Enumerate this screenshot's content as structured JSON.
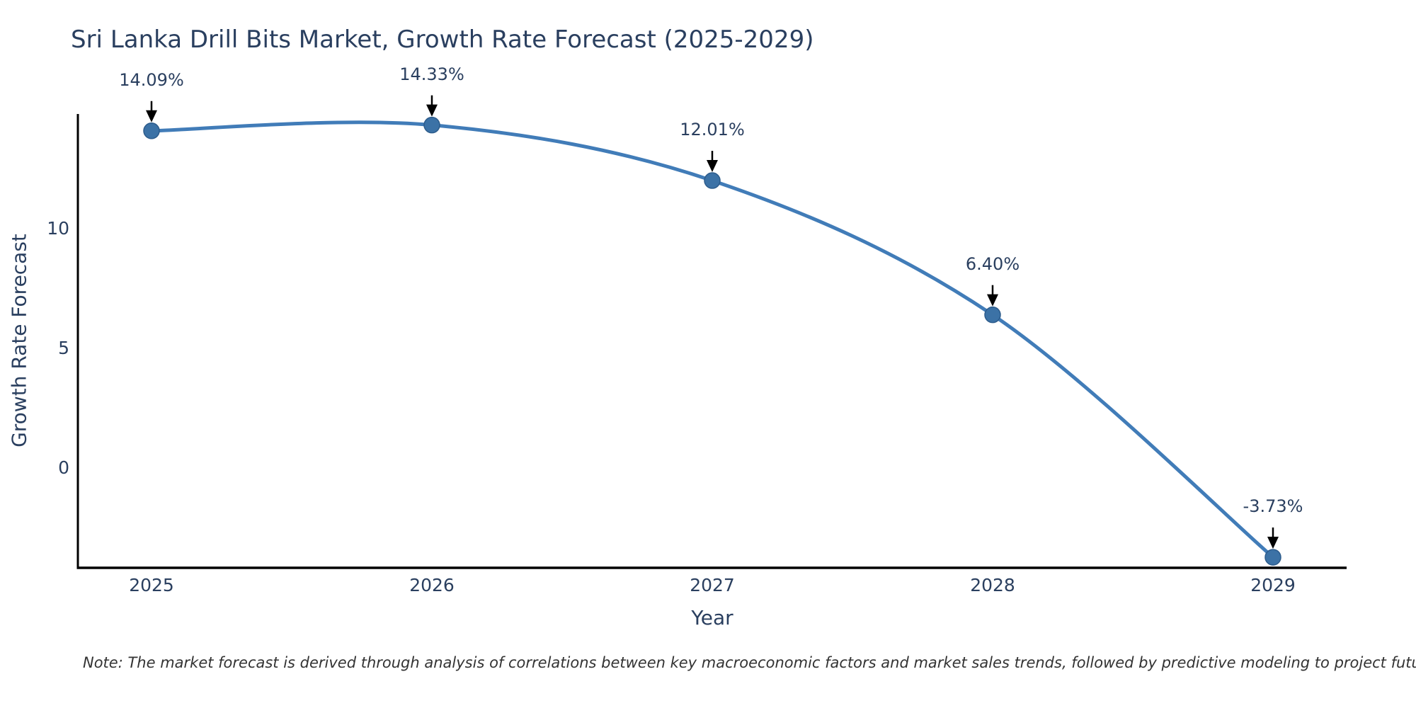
{
  "footnote": "Note: The market forecast is derived through analysis of correlations between key macroeconomic factors and market sales trends, followed by predictive modeling to project future sales",
  "chart_data": {
    "type": "line",
    "title": "Sri Lanka Drill Bits Market, Growth Rate Forecast (2025-2029)",
    "xlabel": "Year",
    "ylabel": "Growth Rate Forecast",
    "categories": [
      "2025",
      "2026",
      "2027",
      "2028",
      "2029"
    ],
    "values": [
      14.09,
      14.33,
      12.01,
      6.4,
      -3.73
    ],
    "point_labels": [
      "14.09%",
      "14.33%",
      "12.01%",
      "6.40%",
      "-3.73%"
    ],
    "yticks": [
      0,
      5,
      10
    ],
    "ylim": [
      -4.2,
      14.8
    ],
    "line_shape": "spline",
    "grid": false,
    "legend": "none",
    "colors": {
      "line": "#417cb8",
      "marker": "#3c72a6",
      "marker_edge": "#2d5c8c",
      "arrow": "#000000",
      "axis": "#000000",
      "text": "#2a3f5f",
      "note_text": "#333333"
    }
  }
}
